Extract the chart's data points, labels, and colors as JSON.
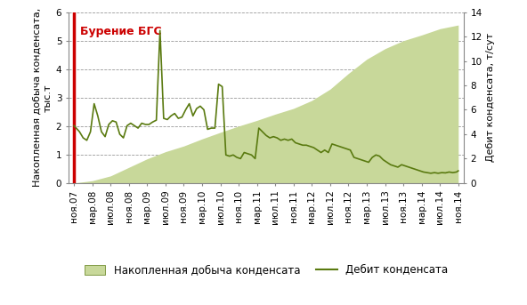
{
  "ylabel_left": "Накопленная добыча конденсата,\nтыс.т",
  "ylabel_right": "Дебит конденсата, т/сут",
  "ylim_left": [
    0,
    6
  ],
  "ylim_right": [
    0,
    14
  ],
  "yticks_left": [
    0,
    1,
    2,
    3,
    4,
    5,
    6
  ],
  "yticks_right": [
    0,
    2,
    4,
    6,
    8,
    10,
    12,
    14
  ],
  "annotation_text": "Бурение БГС",
  "annotation_color": "#cc0000",
  "fill_color": "#c8d89a",
  "line_color": "#5a7a10",
  "x_labels": [
    "ноя.07",
    "мар.08",
    "июл.08",
    "ноя.08",
    "мар.09",
    "июл.09",
    "ноя.09",
    "мар.10",
    "июл.10",
    "ноя.10",
    "мар.11",
    "июл.11",
    "ноя.11",
    "мар.12",
    "июл.12",
    "ноя.12",
    "мар.13",
    "июл.13",
    "ноя.13",
    "мар.14",
    "июл.14",
    "ноя.14"
  ],
  "cumulative_values": [
    0.0,
    0.08,
    0.25,
    0.55,
    0.85,
    1.1,
    1.3,
    1.55,
    1.78,
    2.0,
    2.2,
    2.42,
    2.62,
    2.9,
    3.3,
    3.85,
    4.35,
    4.72,
    5.0,
    5.2,
    5.42,
    5.55
  ],
  "debit_x": [
    0,
    0.3,
    0.5,
    0.7,
    0.9,
    1.1,
    1.3,
    1.5,
    1.7,
    1.9,
    2.1,
    2.3,
    2.5,
    2.7,
    2.9,
    3.1,
    3.3,
    3.5,
    3.7,
    3.9,
    4.1,
    4.3,
    4.5,
    4.7,
    4.9,
    5.1,
    5.3,
    5.5,
    5.7,
    5.9,
    6.1,
    6.3,
    6.5,
    6.7,
    6.9,
    7.1,
    7.3,
    7.5,
    7.7,
    7.9,
    8.1,
    8.3,
    8.5,
    8.7,
    8.9,
    9.1,
    9.3,
    9.5,
    9.7,
    9.9,
    10.1,
    10.3,
    10.5,
    10.7,
    10.9,
    11.1,
    11.3,
    11.5,
    11.7,
    11.9,
    12.1,
    12.3,
    12.5,
    12.7,
    12.9,
    13.1,
    13.3,
    13.5,
    13.7,
    13.9,
    14.1,
    14.3,
    14.5,
    14.7,
    14.9,
    15.1,
    15.3,
    15.5,
    15.7,
    15.9,
    16.1,
    16.3,
    16.5,
    16.7,
    16.9,
    17.1,
    17.3,
    17.5,
    17.7,
    17.9,
    18.1,
    18.3,
    18.5,
    18.7,
    18.9,
    19.1,
    19.3,
    19.5,
    19.7,
    19.9,
    20.1,
    20.3,
    20.5,
    20.7,
    20.9,
    21.0
  ],
  "debit_y": [
    4.7,
    4.2,
    3.7,
    3.5,
    4.2,
    6.5,
    5.5,
    4.2,
    3.8,
    4.8,
    5.1,
    5.0,
    4.0,
    3.7,
    4.7,
    4.9,
    4.7,
    4.5,
    4.9,
    4.8,
    4.8,
    5.0,
    5.15,
    12.5,
    5.3,
    5.2,
    5.5,
    5.7,
    5.3,
    5.4,
    6.0,
    6.5,
    5.5,
    6.1,
    6.3,
    6.0,
    4.4,
    4.5,
    4.5,
    8.1,
    7.9,
    2.3,
    2.2,
    2.3,
    2.1,
    2.0,
    2.5,
    2.4,
    2.3,
    2.0,
    4.5,
    4.2,
    3.9,
    3.7,
    3.8,
    3.7,
    3.5,
    3.6,
    3.5,
    3.6,
    3.3,
    3.2,
    3.1,
    3.1,
    3.0,
    2.9,
    2.7,
    2.5,
    2.7,
    2.5,
    3.2,
    3.1,
    3.0,
    2.9,
    2.8,
    2.7,
    2.1,
    2.0,
    1.9,
    1.8,
    1.7,
    2.1,
    2.3,
    2.2,
    1.9,
    1.7,
    1.5,
    1.4,
    1.3,
    1.5,
    1.4,
    1.3,
    1.2,
    1.1,
    1.0,
    0.9,
    0.85,
    0.8,
    0.85,
    0.8,
    0.85,
    0.83,
    0.9,
    0.85,
    0.9,
    1.0
  ],
  "legend_fill_label": "Накопленная добыча конденсата",
  "legend_line_label": "Дебит конденсата",
  "background_color": "#ffffff",
  "grid_color": "#999999",
  "tick_fontsize": 7.5,
  "label_fontsize": 8,
  "legend_fontsize": 8.5
}
